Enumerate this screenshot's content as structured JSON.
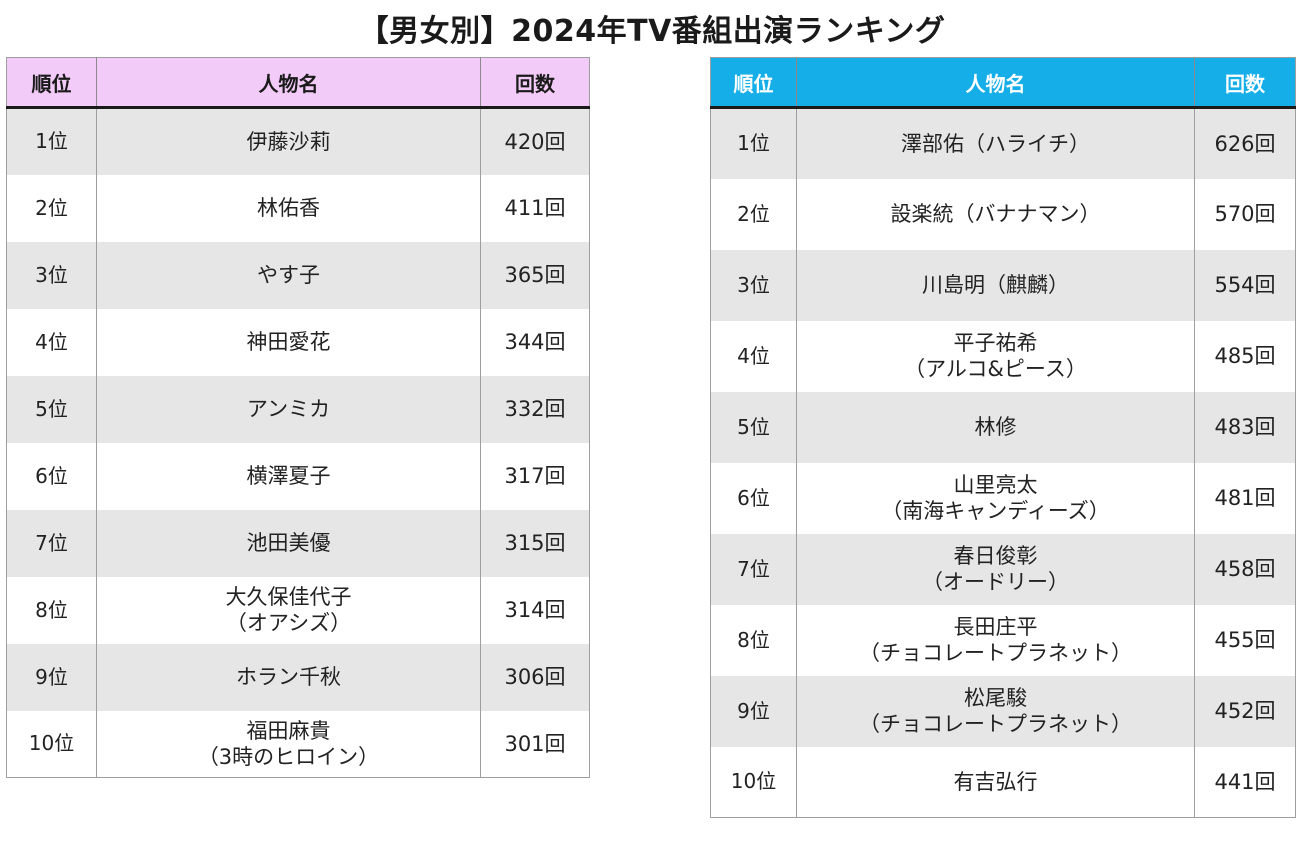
{
  "title": "【男女別】2024年TV番組出演ランキング",
  "colors": {
    "female_header": "#f3cbf8",
    "male_header": "#15aee8",
    "row_alt": "#e6e6e6"
  },
  "female": {
    "headers": [
      "順位",
      "人物名",
      "回数"
    ],
    "rows": [
      {
        "rank": "1位",
        "name": "伊藤沙莉",
        "name_sub": "",
        "count": "420回"
      },
      {
        "rank": "2位",
        "name": "林佑香",
        "name_sub": "",
        "count": "411回"
      },
      {
        "rank": "3位",
        "name": "やす子",
        "name_sub": "",
        "count": "365回"
      },
      {
        "rank": "4位",
        "name": "神田愛花",
        "name_sub": "",
        "count": "344回"
      },
      {
        "rank": "5位",
        "name": "アンミカ",
        "name_sub": "",
        "count": "332回"
      },
      {
        "rank": "6位",
        "name": "横澤夏子",
        "name_sub": "",
        "count": "317回"
      },
      {
        "rank": "7位",
        "name": "池田美優",
        "name_sub": "",
        "count": "315回"
      },
      {
        "rank": "8位",
        "name": "大久保佳代子",
        "name_sub": "（オアシズ）",
        "count": "314回"
      },
      {
        "rank": "9位",
        "name": "ホラン千秋",
        "name_sub": "",
        "count": "306回"
      },
      {
        "rank": "10位",
        "name": "福田麻貴",
        "name_sub": "（3時のヒロイン）",
        "count": "301回"
      }
    ]
  },
  "male": {
    "headers": [
      "順位",
      "人物名",
      "回数"
    ],
    "rows": [
      {
        "rank": "1位",
        "name": "澤部佑（ハライチ）",
        "name_sub": "",
        "count": "626回"
      },
      {
        "rank": "2位",
        "name": "設楽統（バナナマン）",
        "name_sub": "",
        "count": "570回"
      },
      {
        "rank": "3位",
        "name": "川島明（麒麟）",
        "name_sub": "",
        "count": "554回"
      },
      {
        "rank": "4位",
        "name": "平子祐希",
        "name_sub": "（アルコ&ピース）",
        "count": "485回"
      },
      {
        "rank": "5位",
        "name": "林修",
        "name_sub": "",
        "count": "483回"
      },
      {
        "rank": "6位",
        "name": "山里亮太",
        "name_sub": "（南海キャンディーズ）",
        "count": "481回"
      },
      {
        "rank": "7位",
        "name": "春日俊彰",
        "name_sub": "（オードリー）",
        "count": "458回"
      },
      {
        "rank": "8位",
        "name": "長田庄平",
        "name_sub": "（チョコレートプラネット）",
        "count": "455回"
      },
      {
        "rank": "9位",
        "name": "松尾駿",
        "name_sub": "（チョコレートプラネット）",
        "count": "452回"
      },
      {
        "rank": "10位",
        "name": "有吉弘行",
        "name_sub": "",
        "count": "441回"
      }
    ]
  }
}
